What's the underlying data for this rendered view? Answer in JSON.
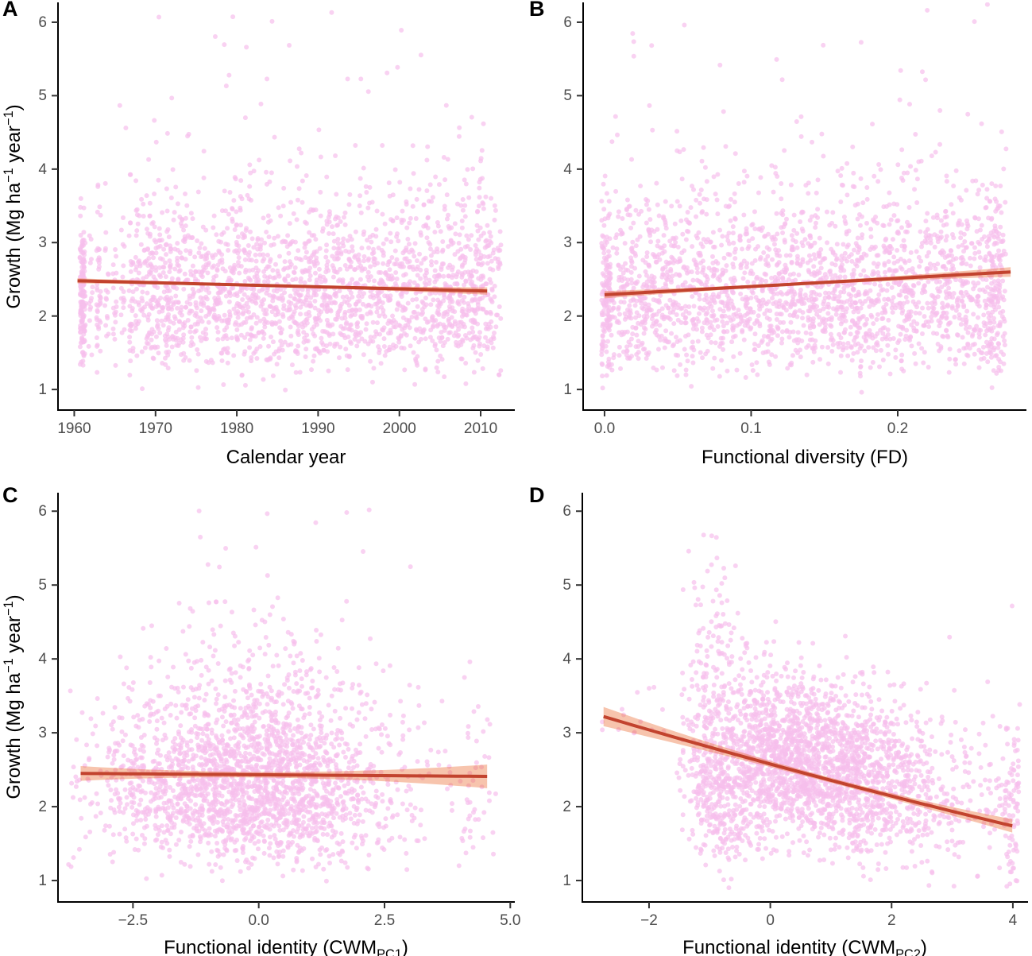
{
  "figure_background": "#ffffff",
  "style": {
    "point_color": "#f6bfec",
    "point_alpha": 0.7,
    "point_radius": 3,
    "trend_color": "#c2432e",
    "trend_width": 4,
    "ci_color": "rgba(237,115,60,0.42)",
    "axis_color": "#000000",
    "tick_mark_color": "#333333",
    "tick_label_color": "#4d4d4d"
  },
  "chart_data": [
    {
      "label": "A",
      "type": "scatter",
      "xlabel": "Calendar year",
      "ylabel": "Growth (Mg ha−1 year−1)",
      "xlabel_parts": [
        {
          "t": "Calendar year"
        }
      ],
      "ylabel_parts": [
        {
          "t": "Growth (Mg ha"
        },
        {
          "sup": "−1"
        },
        {
          "t": " year"
        },
        {
          "sup": "−1"
        },
        {
          "t": ")"
        }
      ],
      "xlim": [
        1958,
        2014.2
      ],
      "ylim": [
        0.72,
        6.27
      ],
      "xticks": [
        1960,
        1970,
        1980,
        1990,
        2000,
        2010
      ],
      "xtick_labels": [
        "1960",
        "1970",
        "1980",
        "1990",
        "2000",
        "2010"
      ],
      "yticks": [
        1,
        2,
        3,
        4,
        5,
        6
      ],
      "ytick_labels": [
        "1",
        "2",
        "3",
        "4",
        "5",
        "6"
      ],
      "trend": {
        "shape": "linear",
        "points": [
          [
            1960.4,
            2.48
          ],
          [
            1985.6,
            2.41
          ],
          [
            2010.8,
            2.34
          ]
        ],
        "ci_halfwidth": [
          [
            1960.4,
            0.035
          ],
          [
            1985.6,
            0.018
          ],
          [
            2010.8,
            0.05
          ]
        ]
      },
      "n_points_approx": 2470,
      "seed": 11,
      "clusters": [
        {
          "n": 120,
          "x": {
            "dist": "const",
            "v": 1961,
            "jitter": 0.3
          },
          "y": {
            "dist": "lognormal",
            "mu": 0.8,
            "sigma": 0.22,
            "min": 1.2,
            "max": 4.2
          }
        },
        {
          "n": 30,
          "x": {
            "dist": "const",
            "v": 1961.2,
            "jitter": 0.2
          },
          "y": {
            "dist": "uniform",
            "a": 1.45,
            "b": 3.2
          }
        },
        {
          "n": 140,
          "x": {
            "dist": "choice",
            "values": [
              1962,
              1963,
              1963,
              1964,
              1965,
              1966,
              1967,
              1967
            ],
            "jitter": 0.25
          },
          "y": {
            "dist": "lognormal",
            "mu": 0.82,
            "sigma": 0.24,
            "min": 1.1,
            "max": 4.4
          }
        },
        {
          "n": 2150,
          "x": {
            "dist": "uniform",
            "a": 1967.5,
            "b": 2012.5
          },
          "y": {
            "dist": "lognormal",
            "mu": 0.8544,
            "sigma": 0.265,
            "min": 0.95,
            "max": 4.75
          }
        },
        {
          "n": 22,
          "x": {
            "dist": "uniform",
            "a": 1963,
            "b": 2011
          },
          "y": {
            "dist": "uniform",
            "a": 4.3,
            "b": 6.2
          }
        },
        {
          "n": 6,
          "x": {
            "dist": "uniform",
            "a": 1974,
            "b": 1996
          },
          "y": {
            "dist": "uniform",
            "a": 5.0,
            "b": 6.25
          }
        }
      ]
    },
    {
      "label": "B",
      "type": "scatter",
      "xlabel": "Functional diversity (FD)",
      "ylabel": "",
      "xlabel_parts": [
        {
          "t": "Functional diversity (FD)"
        }
      ],
      "ylabel_parts": null,
      "xlim": [
        -0.0146,
        0.2878
      ],
      "ylim": [
        0.72,
        6.27
      ],
      "xticks": [
        0.0,
        0.1,
        0.2
      ],
      "xtick_labels": [
        "0.0",
        "0.1",
        "0.2"
      ],
      "yticks": [
        1,
        2,
        3,
        4,
        5,
        6
      ],
      "ytick_labels": [
        "1",
        "2",
        "3",
        "4",
        "5",
        "6"
      ],
      "trend": {
        "shape": "linear",
        "points": [
          [
            0.0,
            2.29
          ],
          [
            0.1385,
            2.445
          ],
          [
            0.277,
            2.6
          ]
        ],
        "ci_halfwidth": [
          [
            0.0,
            0.05
          ],
          [
            0.1385,
            0.022
          ],
          [
            0.277,
            0.065
          ]
        ]
      },
      "n_points_approx": 2450,
      "seed": 22,
      "clusters": [
        {
          "n": 140,
          "x": {
            "dist": "const",
            "v": 0.001,
            "jitter": 0.003
          },
          "y": {
            "dist": "lognormal",
            "mu": 0.83,
            "sigma": 0.26,
            "min": 1.0,
            "max": 4.6
          }
        },
        {
          "n": 2200,
          "x": {
            "dist": "uniform",
            "a": 0.002,
            "b": 0.272
          },
          "y": {
            "dist": "lognormal",
            "mu": 0.8544,
            "sigma": 0.27,
            "min": 0.95,
            "max": 4.8
          }
        },
        {
          "n": 90,
          "x": {
            "dist": "const",
            "v": 0.268,
            "jitter": 0.006
          },
          "y": {
            "dist": "lognormal",
            "mu": 0.86,
            "sigma": 0.3,
            "min": 1.0,
            "max": 4.6
          }
        },
        {
          "n": 24,
          "x": {
            "dist": "uniform",
            "a": 0.0,
            "b": 0.27
          },
          "y": {
            "dist": "uniform",
            "a": 4.4,
            "b": 6.3
          }
        }
      ]
    },
    {
      "label": "C",
      "type": "scatter",
      "xlabel": "Functional identity (CWM_PC1)",
      "ylabel": "Growth (Mg ha−1 year−1)",
      "xlabel_parts": [
        {
          "t": "Functional identity (CWM"
        },
        {
          "sub": "PC1"
        },
        {
          "t": ")"
        }
      ],
      "ylabel_parts": [
        {
          "t": "Growth (Mg ha"
        },
        {
          "sup": "−1"
        },
        {
          "t": " year"
        },
        {
          "sup": "−1"
        },
        {
          "t": ")"
        }
      ],
      "xlim": [
        -3.99,
        5.09
      ],
      "ylim": [
        0.71,
        6.25
      ],
      "xticks": [
        -2.5,
        0.0,
        2.5,
        5.0
      ],
      "xtick_labels": [
        "−2.5",
        "0.0",
        "2.5",
        "5.0"
      ],
      "yticks": [
        1,
        2,
        3,
        4,
        5,
        6
      ],
      "ytick_labels": [
        "1",
        "2",
        "3",
        "4",
        "5",
        "6"
      ],
      "trend": {
        "shape": "linear",
        "points": [
          [
            -3.54,
            2.45
          ],
          [
            0.5,
            2.43
          ],
          [
            4.54,
            2.41
          ]
        ],
        "ci_halfwidth": [
          [
            -3.54,
            0.1
          ],
          [
            0.5,
            0.04
          ],
          [
            4.54,
            0.16
          ]
        ]
      },
      "n_points_approx": 2360,
      "seed": 33,
      "clusters": [
        {
          "n": 2300,
          "x": {
            "dist": "normal",
            "mean": -0.2,
            "sd": 1.55,
            "min": -3.8,
            "max": 4.0
          },
          "y": {
            "dist": "lognormal",
            "mu": 0.8544,
            "sigma": 0.27,
            "min": 0.95,
            "max": 4.9
          }
        },
        {
          "n": 45,
          "x": {
            "dist": "uniform",
            "a": 4.0,
            "b": 4.72
          },
          "y": {
            "dist": "lognormal",
            "mu": 0.83,
            "sigma": 0.3,
            "min": 1.1,
            "max": 4.0
          }
        },
        {
          "n": 18,
          "x": {
            "dist": "normal",
            "mean": 0.3,
            "sd": 1.6,
            "min": -3.5,
            "max": 4.6
          },
          "y": {
            "dist": "uniform",
            "a": 4.5,
            "b": 6.05
          }
        }
      ]
    },
    {
      "label": "D",
      "type": "scatter",
      "xlabel": "Functional identity (CWM_PC2)",
      "ylabel": "",
      "xlabel_parts": [
        {
          "t": "Functional identity (CWM"
        },
        {
          "sub": "PC2"
        },
        {
          "t": ")"
        }
      ],
      "ylabel_parts": null,
      "xlim": [
        -3.1,
        4.25
      ],
      "ylim": [
        0.71,
        6.25
      ],
      "xticks": [
        -2,
        0,
        2,
        4
      ],
      "xtick_labels": [
        "−2",
        "0",
        "2",
        "4"
      ],
      "yticks": [
        1,
        2,
        3,
        4,
        5,
        6
      ],
      "ytick_labels": [
        "1",
        "2",
        "3",
        "4",
        "5",
        "6"
      ],
      "trend": {
        "shape": "curve",
        "points": [
          [
            -2.75,
            3.22
          ],
          [
            0.62,
            2.44
          ],
          [
            3.99,
            1.74
          ]
        ],
        "ci_halfwidth": [
          [
            -2.75,
            0.13
          ],
          [
            0.62,
            0.035
          ],
          [
            3.99,
            0.09
          ]
        ]
      },
      "n_points_approx": 2780,
      "seed": 44,
      "clusters": [
        {
          "n": 14,
          "x": {
            "dist": "uniform",
            "a": -2.78,
            "b": -1.75
          },
          "y": {
            "dist": "normal",
            "mean": 3.25,
            "sd": 0.22,
            "min": 2.9,
            "max": 3.65
          }
        },
        {
          "n": 520,
          "x": {
            "dist": "normal",
            "mean": -0.9,
            "sd": 0.28,
            "min": -1.55,
            "max": -0.35
          },
          "y": {
            "dist": "lognormal",
            "mu": 0.95,
            "sigma": 0.33,
            "min": 0.9,
            "max": 5.8
          }
        },
        {
          "n": 1750,
          "x": {
            "dist": "normal",
            "mean": 0.9,
            "sd": 1.05,
            "min": -0.5,
            "max": 3.3
          },
          "y": {
            "dist": "linnormal",
            "b0": 2.78,
            "b1": -0.22,
            "sd": 0.55,
            "min": 0.9,
            "max": 4.35
          }
        },
        {
          "n": 350,
          "x": {
            "dist": "normal",
            "mean": -0.1,
            "sd": 0.45,
            "min": -0.9,
            "max": 0.8
          },
          "y": {
            "dist": "lognormal",
            "mu": 0.9,
            "sigma": 0.3,
            "min": 0.95,
            "max": 4.6
          }
        },
        {
          "n": 85,
          "x": {
            "dist": "const",
            "v": 3.98,
            "jitter": 0.12
          },
          "y": {
            "dist": "normal",
            "mean": 2.0,
            "sd": 0.6,
            "min": 0.9,
            "max": 3.1
          }
        },
        {
          "n": 55,
          "x": {
            "dist": "uniform",
            "a": 3.2,
            "b": 3.9
          },
          "y": {
            "dist": "normal",
            "mean": 2.2,
            "sd": 0.55,
            "min": 1.0,
            "max": 3.6
          }
        },
        {
          "n": 10,
          "x": {
            "dist": "uniform",
            "a": 1.0,
            "b": 4.2
          },
          "y": {
            "dist": "uniform",
            "a": 3.3,
            "b": 4.75
          }
        }
      ]
    }
  ]
}
